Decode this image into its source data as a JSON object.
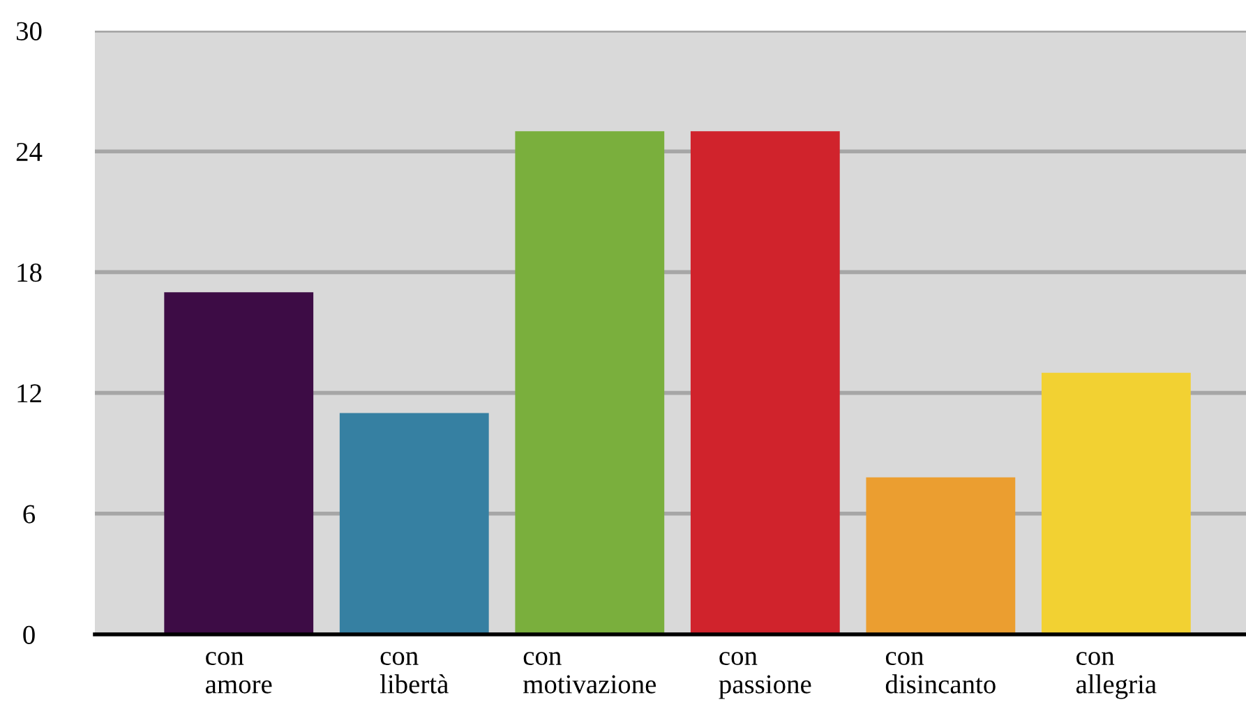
{
  "chart_data": {
    "type": "bar",
    "categories": [
      "con\namore",
      "con\nlibertà",
      "con\nmotivazione",
      "con\npassione",
      "con\ndisincanto",
      "con\nallegria"
    ],
    "values": [
      17,
      11,
      25,
      25,
      7.8,
      13
    ],
    "colors": [
      "#3d0c45",
      "#3680a2",
      "#7aaf3d",
      "#d0232c",
      "#eb9e30",
      "#f2d132"
    ],
    "ylim": [
      0,
      30
    ],
    "yticks": [
      0,
      6,
      12,
      18,
      24,
      30
    ],
    "grid": "y"
  }
}
